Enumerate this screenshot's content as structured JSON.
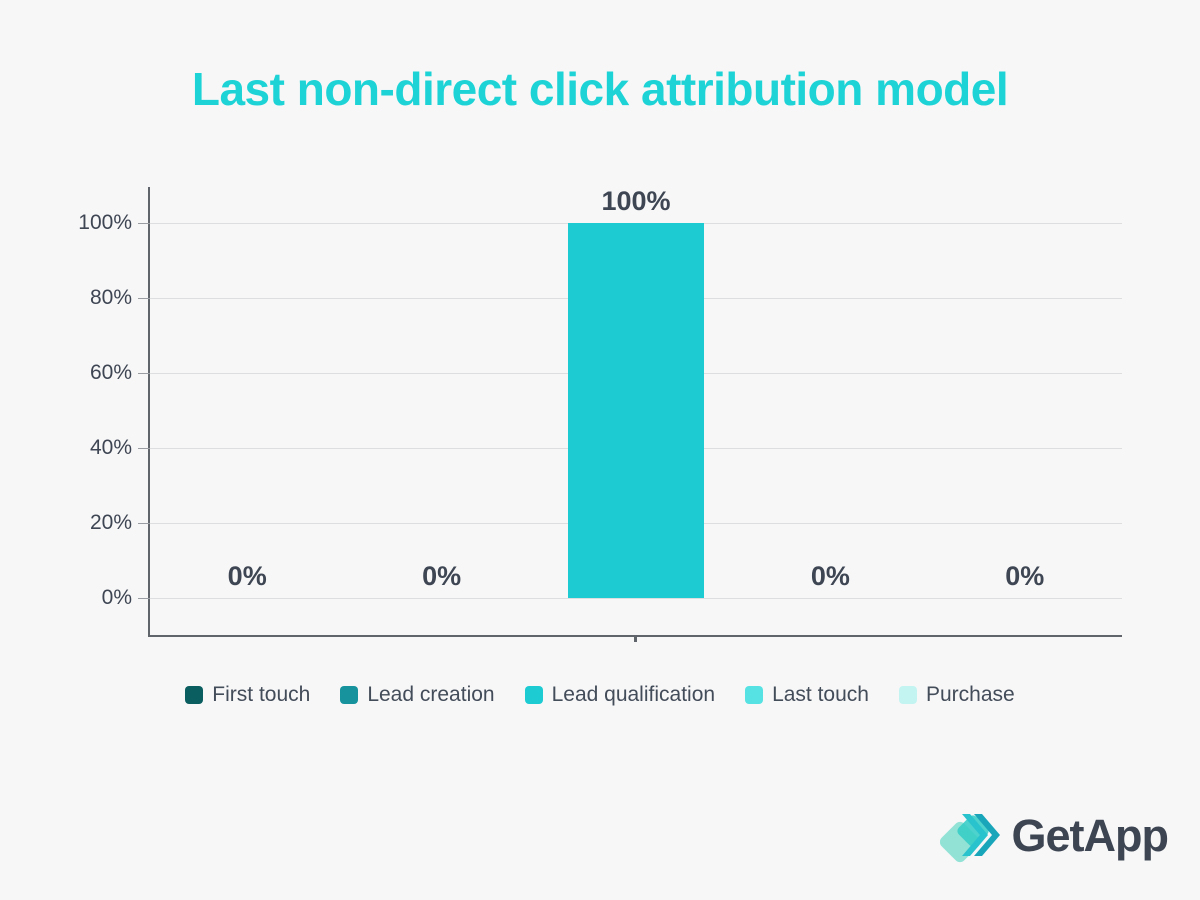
{
  "title": "Last non-direct click attribution model",
  "chart_data": {
    "type": "bar",
    "title": "Last non-direct click attribution model",
    "categories": [
      "First touch",
      "Lead creation",
      "Lead qualification",
      "Last touch",
      "Purchase"
    ],
    "values": [
      0,
      0,
      100,
      0,
      0
    ],
    "value_labels": [
      "0%",
      "0%",
      "100%",
      "0%",
      "0%"
    ],
    "series_colors": [
      "#0b5e5f",
      "#16939d",
      "#1dcbd3",
      "#56e2e2",
      "#c4f4f1"
    ],
    "xlabel": "",
    "ylabel": "",
    "y_ticks": [
      "0%",
      "20%",
      "40%",
      "60%",
      "80%",
      "100%"
    ],
    "y_tick_values": [
      0,
      20,
      40,
      60,
      80,
      100
    ],
    "ylim": [
      0,
      100
    ],
    "grid": true,
    "legend_position": "bottom"
  },
  "legend": {
    "items": [
      {
        "label": "First touch",
        "color": "#0b5e5f"
      },
      {
        "label": "Lead creation",
        "color": "#16939d"
      },
      {
        "label": "Lead qualification",
        "color": "#1dcbd3"
      },
      {
        "label": "Last touch",
        "color": "#56e2e2"
      },
      {
        "label": "Purchase",
        "color": "#c4f4f1"
      }
    ]
  },
  "logo": {
    "text": "GetApp",
    "icon": "getapp-diamonds-chevrons-icon",
    "icon_colors": [
      "#8ae0d2",
      "#35cdc6",
      "#29c3ce",
      "#1aa6ba"
    ]
  },
  "colors": {
    "background": "#f7f7f8",
    "title": "#1ed3d6",
    "bar": "#1dcbd3",
    "value_label_text": "#3e4653",
    "axis_label_text": "#3f4653",
    "axis_line": "#60656c",
    "gridline": "#dcdee0",
    "legend_text": "#434c59",
    "logo_text": "#3d4552"
  }
}
